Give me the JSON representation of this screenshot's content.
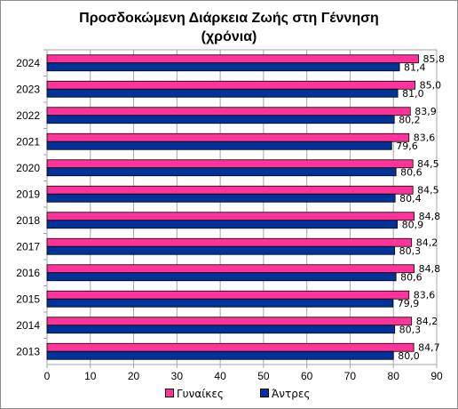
{
  "chart_data": {
    "type": "bar",
    "orientation": "horizontal",
    "title": "Προσδοκώμενη Διάρκεια Ζωής στη Γέννηση",
    "subtitle": "(χρόνια)",
    "categories": [
      "2024",
      "2023",
      "2022",
      "2021",
      "2020",
      "2019",
      "2018",
      "2017",
      "2016",
      "2015",
      "2014",
      "2013"
    ],
    "series": [
      {
        "name": "Γυναίκες",
        "color": "#ff3399",
        "values": [
          85.8,
          85.0,
          83.9,
          83.6,
          84.5,
          84.5,
          84.8,
          84.2,
          84.8,
          83.6,
          84.2,
          84.7
        ],
        "labels": [
          "85,8",
          "85,0",
          "83,9",
          "83,6",
          "84,5",
          "84,5",
          "84,8",
          "84,2",
          "84,8",
          "83,6",
          "84,2",
          "84,7"
        ]
      },
      {
        "name": "Άντρες",
        "color": "#003399",
        "values": [
          81.4,
          81.0,
          80.2,
          79.6,
          80.6,
          80.4,
          80.9,
          80.3,
          80.6,
          79.9,
          80.3,
          80.0
        ],
        "labels": [
          "81,4",
          "81,0",
          "80,2",
          "79,6",
          "80,6",
          "80,4",
          "80,9",
          "80,3",
          "80,6",
          "79,9",
          "80,3",
          "80,0"
        ]
      }
    ],
    "xlim": [
      0,
      90
    ],
    "xticks": [
      "0",
      "10",
      "20",
      "30",
      "40",
      "50",
      "60",
      "70",
      "80",
      "90"
    ],
    "grid": true,
    "legend": "bottom"
  }
}
